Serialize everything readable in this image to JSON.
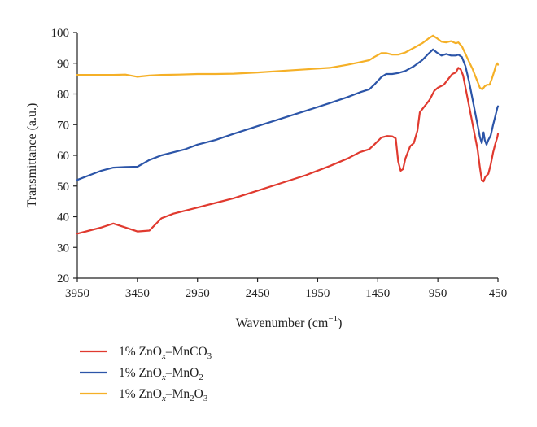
{
  "chart_data": {
    "type": "line",
    "xlabel": "Wavenumber (cm",
    "xlabel_sup": "−1",
    "xlabel_end": ")",
    "ylabel": "Transmittance (a.u.)",
    "xlim": [
      3950,
      450
    ],
    "x_reversed": true,
    "ylim": [
      20,
      100
    ],
    "xticks": [
      3950,
      3450,
      2950,
      2450,
      1950,
      1450,
      950,
      450
    ],
    "yticks": [
      20,
      30,
      40,
      50,
      60,
      70,
      80,
      90,
      100
    ],
    "grid": false,
    "legend_position": "bottom-left",
    "series": [
      {
        "name": "1% ZnOx–MnCO3",
        "legend": {
          "pre": "1% ZnO",
          "sub1": "x",
          "mid": "–MnCO",
          "sub2": "3"
        },
        "color": "#e03a2f",
        "points": [
          [
            3950,
            34.5
          ],
          [
            3850,
            35.5
          ],
          [
            3750,
            36.5
          ],
          [
            3650,
            37.8
          ],
          [
            3550,
            36.5
          ],
          [
            3450,
            35.2
          ],
          [
            3350,
            35.5
          ],
          [
            3250,
            39.5
          ],
          [
            3150,
            41
          ],
          [
            3050,
            42
          ],
          [
            2950,
            43
          ],
          [
            2800,
            44.5
          ],
          [
            2650,
            46
          ],
          [
            2450,
            48.5
          ],
          [
            2250,
            51
          ],
          [
            2050,
            53.5
          ],
          [
            1850,
            56.5
          ],
          [
            1700,
            59
          ],
          [
            1600,
            61
          ],
          [
            1520,
            62
          ],
          [
            1480,
            63.5
          ],
          [
            1420,
            65.8
          ],
          [
            1370,
            66.3
          ],
          [
            1330,
            66.2
          ],
          [
            1300,
            65.5
          ],
          [
            1280,
            58
          ],
          [
            1260,
            55
          ],
          [
            1240,
            55.5
          ],
          [
            1220,
            59
          ],
          [
            1180,
            63
          ],
          [
            1150,
            64
          ],
          [
            1120,
            68
          ],
          [
            1100,
            74
          ],
          [
            1060,
            76
          ],
          [
            1020,
            78
          ],
          [
            980,
            81
          ],
          [
            950,
            82
          ],
          [
            900,
            83
          ],
          [
            860,
            85
          ],
          [
            830,
            86.5
          ],
          [
            800,
            87
          ],
          [
            780,
            88.5
          ],
          [
            760,
            88
          ],
          [
            740,
            86
          ],
          [
            700,
            78
          ],
          [
            660,
            70
          ],
          [
            620,
            62
          ],
          [
            600,
            56
          ],
          [
            585,
            52
          ],
          [
            570,
            51.5
          ],
          [
            555,
            53
          ],
          [
            530,
            54
          ],
          [
            510,
            57
          ],
          [
            490,
            61
          ],
          [
            470,
            64
          ],
          [
            455,
            66
          ],
          [
            450,
            67
          ]
        ]
      },
      {
        "name": "1% ZnOx–MnO2",
        "legend": {
          "pre": "1% ZnO",
          "sub1": "x",
          "mid": "–MnO",
          "sub2": "2"
        },
        "color": "#2c55a8",
        "points": [
          [
            3950,
            52
          ],
          [
            3850,
            53.5
          ],
          [
            3750,
            55
          ],
          [
            3650,
            56
          ],
          [
            3550,
            56.2
          ],
          [
            3450,
            56.3
          ],
          [
            3350,
            58.5
          ],
          [
            3250,
            60
          ],
          [
            3150,
            61
          ],
          [
            3050,
            62
          ],
          [
            2950,
            63.5
          ],
          [
            2800,
            65
          ],
          [
            2650,
            67
          ],
          [
            2450,
            69.5
          ],
          [
            2250,
            72
          ],
          [
            2050,
            74.5
          ],
          [
            1850,
            77
          ],
          [
            1700,
            79
          ],
          [
            1600,
            80.5
          ],
          [
            1520,
            81.5
          ],
          [
            1480,
            83
          ],
          [
            1420,
            85.5
          ],
          [
            1380,
            86.5
          ],
          [
            1330,
            86.5
          ],
          [
            1280,
            86.8
          ],
          [
            1220,
            87.5
          ],
          [
            1150,
            89
          ],
          [
            1080,
            91
          ],
          [
            1030,
            93
          ],
          [
            990,
            94.5
          ],
          [
            960,
            93.5
          ],
          [
            920,
            92.5
          ],
          [
            880,
            93
          ],
          [
            840,
            92.5
          ],
          [
            800,
            92.5
          ],
          [
            780,
            92.8
          ],
          [
            750,
            92
          ],
          [
            720,
            89
          ],
          [
            690,
            84
          ],
          [
            660,
            78
          ],
          [
            630,
            72
          ],
          [
            610,
            68
          ],
          [
            600,
            66
          ],
          [
            585,
            64
          ],
          [
            570,
            67.5
          ],
          [
            560,
            65
          ],
          [
            545,
            63.5
          ],
          [
            530,
            65
          ],
          [
            510,
            66.5
          ],
          [
            490,
            70
          ],
          [
            470,
            73
          ],
          [
            455,
            75.5
          ],
          [
            450,
            76
          ]
        ]
      },
      {
        "name": "1% ZnOx–Mn2O3",
        "legend": {
          "pre": "1% ZnO",
          "sub1": "x",
          "mid": "–Mn",
          "sub2": "2",
          "end": "O",
          "sub3": "3"
        },
        "color": "#f5b027",
        "points": [
          [
            3950,
            86.2
          ],
          [
            3800,
            86.2
          ],
          [
            3650,
            86.2
          ],
          [
            3550,
            86.3
          ],
          [
            3450,
            85.6
          ],
          [
            3350,
            86
          ],
          [
            3250,
            86.2
          ],
          [
            3100,
            86.3
          ],
          [
            2950,
            86.5
          ],
          [
            2800,
            86.5
          ],
          [
            2650,
            86.6
          ],
          [
            2450,
            87
          ],
          [
            2250,
            87.5
          ],
          [
            2050,
            88
          ],
          [
            1850,
            88.5
          ],
          [
            1700,
            89.5
          ],
          [
            1600,
            90.3
          ],
          [
            1520,
            91
          ],
          [
            1480,
            92
          ],
          [
            1420,
            93.3
          ],
          [
            1380,
            93.3
          ],
          [
            1330,
            92.8
          ],
          [
            1280,
            92.8
          ],
          [
            1220,
            93.5
          ],
          [
            1150,
            95
          ],
          [
            1080,
            96.5
          ],
          [
            1030,
            98
          ],
          [
            990,
            99
          ],
          [
            960,
            98.2
          ],
          [
            920,
            97
          ],
          [
            880,
            96.8
          ],
          [
            840,
            97.2
          ],
          [
            800,
            96.5
          ],
          [
            780,
            96.8
          ],
          [
            750,
            95.5
          ],
          [
            720,
            93
          ],
          [
            690,
            90.5
          ],
          [
            660,
            88
          ],
          [
            640,
            86
          ],
          [
            620,
            84
          ],
          [
            600,
            82
          ],
          [
            580,
            81.5
          ],
          [
            560,
            82.5
          ],
          [
            540,
            83
          ],
          [
            520,
            83
          ],
          [
            500,
            85
          ],
          [
            480,
            87.5
          ],
          [
            465,
            89.5
          ],
          [
            455,
            90
          ],
          [
            450,
            89.5
          ]
        ]
      }
    ]
  }
}
